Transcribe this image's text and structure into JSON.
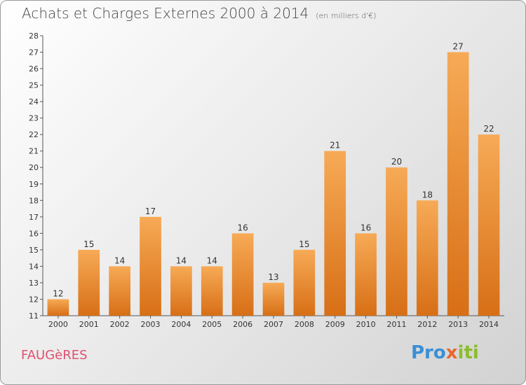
{
  "title": "Achats et Charges Externes 2000 à 2014",
  "subtitle": "(en milliers d'€)",
  "location": "FAUGèRES",
  "brand": {
    "part1": "Pro",
    "part2": "x",
    "part3": "iti"
  },
  "chart_data": {
    "type": "bar",
    "title": "Achats et Charges Externes 2000 à 2014",
    "subtitle": "(en milliers d'€)",
    "categories": [
      "2000",
      "2001",
      "2002",
      "2003",
      "2004",
      "2005",
      "2006",
      "2007",
      "2008",
      "2009",
      "2010",
      "2011",
      "2012",
      "2013",
      "2014"
    ],
    "values": [
      12,
      15,
      14,
      17,
      14,
      14,
      16,
      13,
      15,
      21,
      16,
      20,
      18,
      27,
      22
    ],
    "ylim": [
      11,
      28
    ],
    "yticks": [
      11,
      12,
      13,
      14,
      15,
      16,
      17,
      18,
      19,
      20,
      21,
      22,
      23,
      24,
      25,
      26,
      27,
      28
    ],
    "grid": false,
    "bar_color": "#f08a2c",
    "bar_color_light": "#f6ad5c"
  }
}
